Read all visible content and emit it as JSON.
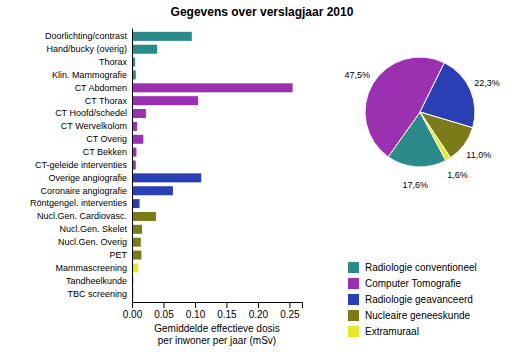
{
  "chart_data": [
    {
      "type": "bar",
      "orientation": "horizontal",
      "title": "Gegevens over verslagjaar 2010",
      "xlabel": "Gemiddelde effectieve dosis\nper inwoner per jaar (mSv)",
      "categories": [
        "Doorlichting/contrast",
        "Hand/bucky (overig)",
        "Thorax",
        "Klin. Mammografie",
        "CT Abdomen",
        "CT Thorax",
        "CT Hoofd/schedel",
        "CT Wervelkolom",
        "CT Overig",
        "CT Bekken",
        "CT-geleide interventies",
        "Overige angiografie",
        "Coronaire angiografie",
        "Röntgengel. interventies",
        "Nucl.Gen. Cardiovasc.",
        "Nucl.Gen. Skelet",
        "Nucl.Gen. Overig",
        "PET",
        "Mammascreening",
        "Tandheelkunde",
        "TBC screening"
      ],
      "values": [
        0.095,
        0.04,
        0.005,
        0.006,
        0.255,
        0.105,
        0.022,
        0.008,
        0.018,
        0.007,
        0.006,
        0.11,
        0.065,
        0.012,
        0.038,
        0.016,
        0.014,
        0.015,
        0.01,
        0.002,
        0.002
      ],
      "colors": [
        "#2b8a8a",
        "#2b8a8a",
        "#2b8a8a",
        "#2b8a8a",
        "#9b30b0",
        "#9b30b0",
        "#9b30b0",
        "#9b30b0",
        "#9b30b0",
        "#9b30b0",
        "#9b30b0",
        "#2b3fb5",
        "#2b3fb5",
        "#2b3fb5",
        "#7b7b1a",
        "#7b7b1a",
        "#7b7b1a",
        "#7b7b1a",
        "#e8e82a",
        "#2b8a8a",
        "#2b8a8a"
      ],
      "xlim": [
        0,
        0.27
      ],
      "xticks": [
        {
          "value": 0,
          "label": "0.00"
        },
        0.05,
        {
          "value": 0.1,
          "label": "0.10"
        },
        0.15,
        {
          "value": 0.2,
          "label": "0.20"
        },
        0.25
      ]
    },
    {
      "type": "pie",
      "categories": [
        "Radiologie conventioneel",
        "Computer Tomografie",
        "Radiologie geavanceerd",
        "Nucleaire geneeskunde",
        "Extramuraal"
      ],
      "values": [
        17.6,
        47.5,
        22.3,
        11.0,
        1.6
      ],
      "value_labels": [
        "17,6%",
        "47,5%",
        "22,3%",
        "11,0%",
        "1,6%"
      ],
      "colors": [
        "#2b8a8a",
        "#9b30b0",
        "#2b3fb5",
        "#7b7b1a",
        "#e8e82a"
      ],
      "data_labels": true,
      "legend": "lower right"
    }
  ]
}
